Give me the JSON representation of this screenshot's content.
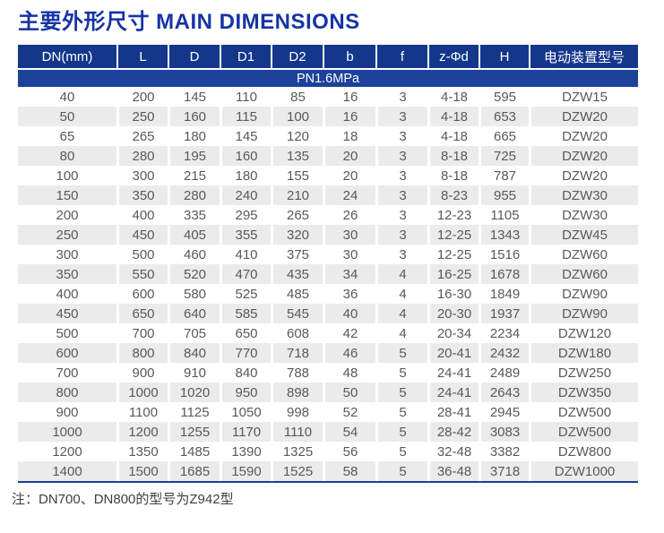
{
  "title": "主要外形尺寸 MAIN DIMENSIONS",
  "table": {
    "columns": [
      "DN(mm)",
      "L",
      "D",
      "D1",
      "D2",
      "b",
      "f",
      "z-Φd",
      "H",
      "电动装置型号"
    ],
    "pressure_class": "PN1.6MPa",
    "rows": [
      [
        "40",
        "200",
        "145",
        "110",
        "85",
        "16",
        "3",
        "4-18",
        "595",
        "DZW15"
      ],
      [
        "50",
        "250",
        "160",
        "115",
        "100",
        "16",
        "3",
        "4-18",
        "653",
        "DZW20"
      ],
      [
        "65",
        "265",
        "180",
        "145",
        "120",
        "18",
        "3",
        "4-18",
        "665",
        "DZW20"
      ],
      [
        "80",
        "280",
        "195",
        "160",
        "135",
        "20",
        "3",
        "8-18",
        "725",
        "DZW20"
      ],
      [
        "100",
        "300",
        "215",
        "180",
        "155",
        "20",
        "3",
        "8-18",
        "787",
        "DZW20"
      ],
      [
        "150",
        "350",
        "280",
        "240",
        "210",
        "24",
        "3",
        "8-23",
        "955",
        "DZW30"
      ],
      [
        "200",
        "400",
        "335",
        "295",
        "265",
        "26",
        "3",
        "12-23",
        "1105",
        "DZW30"
      ],
      [
        "250",
        "450",
        "405",
        "355",
        "320",
        "30",
        "3",
        "12-25",
        "1343",
        "DZW45"
      ],
      [
        "300",
        "500",
        "460",
        "410",
        "375",
        "30",
        "3",
        "12-25",
        "1516",
        "DZW60"
      ],
      [
        "350",
        "550",
        "520",
        "470",
        "435",
        "34",
        "4",
        "16-25",
        "1678",
        "DZW60"
      ],
      [
        "400",
        "600",
        "580",
        "525",
        "485",
        "36",
        "4",
        "16-30",
        "1849",
        "DZW90"
      ],
      [
        "450",
        "650",
        "640",
        "585",
        "545",
        "40",
        "4",
        "20-30",
        "1937",
        "DZW90"
      ],
      [
        "500",
        "700",
        "705",
        "650",
        "608",
        "42",
        "4",
        "20-34",
        "2234",
        "DZW120"
      ],
      [
        "600",
        "800",
        "840",
        "770",
        "718",
        "46",
        "5",
        "20-41",
        "2432",
        "DZW180"
      ],
      [
        "700",
        "900",
        "910",
        "840",
        "788",
        "48",
        "5",
        "24-41",
        "2489",
        "DZW250"
      ],
      [
        "800",
        "1000",
        "1020",
        "950",
        "898",
        "50",
        "5",
        "24-41",
        "2643",
        "DZW350"
      ],
      [
        "900",
        "1100",
        "1125",
        "1050",
        "998",
        "52",
        "5",
        "28-41",
        "2945",
        "DZW500"
      ],
      [
        "1000",
        "1200",
        "1255",
        "1170",
        "1110",
        "54",
        "5",
        "28-42",
        "3083",
        "DZW500"
      ],
      [
        "1200",
        "1350",
        "1485",
        "1390",
        "1325",
        "56",
        "5",
        "32-48",
        "3382",
        "DZW800"
      ],
      [
        "1400",
        "1500",
        "1685",
        "1590",
        "1525",
        "58",
        "5",
        "36-48",
        "3718",
        "DZW1000"
      ]
    ]
  },
  "note": "注：DN700、DN800的型号为Z942型",
  "colors": {
    "header_bg": "#14378c",
    "pressure_row_bg": "#1d429a",
    "title": "#1733a6",
    "alt_row_bg": "#ebebeb",
    "cell_text": "#58595b",
    "bottom_border": "#1d3e94"
  }
}
